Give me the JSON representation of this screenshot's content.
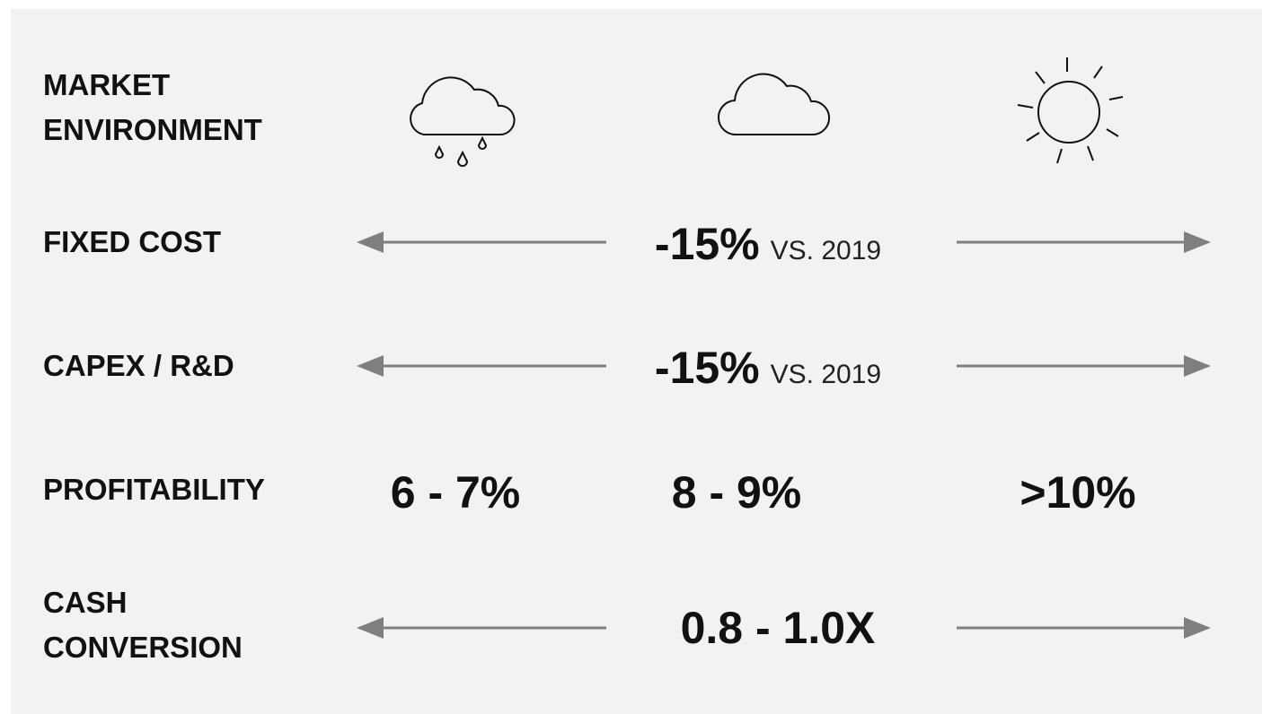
{
  "rows": [
    {
      "label": "MARKET ENVIRONMENT"
    },
    {
      "label": "FIXED COST",
      "value": "-15%",
      "note": "VS. 2019"
    },
    {
      "label": "CAPEX / R&D",
      "value": "-15%",
      "note": "VS. 2019"
    },
    {
      "label": "PROFITABILITY",
      "values": [
        "6 - 7%",
        "8 - 9%",
        ">10%"
      ]
    },
    {
      "label": "CASH CONVERSION",
      "value": "0.8 - 1.0X"
    }
  ]
}
